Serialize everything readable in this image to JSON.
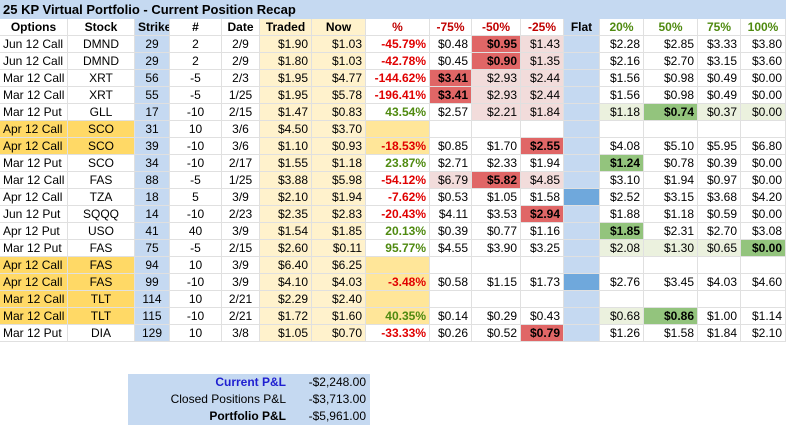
{
  "title": "25 KP Virtual Portfolio - Current Position Recap",
  "table": {
    "headers": [
      "Options",
      "Stock",
      "Strike",
      "#",
      "Date",
      "Traded",
      "Now",
      "%",
      "-75%",
      "-50%",
      "-25%",
      "Flat",
      "20%",
      "50%",
      "75%",
      "100%"
    ],
    "rows": [
      [
        "Jun 12 Call",
        "DMND",
        "29",
        "2",
        "2/9",
        "$1.90",
        "$1.03",
        "-45.79%",
        "$0.48",
        "$0.95",
        "$1.43",
        null,
        "$2.28",
        "$2.85",
        "$3.33",
        "$3.80"
      ],
      [
        "Jun 12 Call",
        "DMND",
        "29",
        "2",
        "2/9",
        "$1.80",
        "$1.03",
        "-42.78%",
        "$0.45",
        "$0.90",
        "$1.35",
        null,
        "$2.16",
        "$2.70",
        "$3.15",
        "$3.60"
      ],
      [
        "Mar 12 Call",
        "XRT",
        "56",
        "-5",
        "2/3",
        "$1.95",
        "$4.77",
        "-144.62%",
        "$3.41",
        "$2.93",
        "$2.44",
        null,
        "$1.56",
        "$0.98",
        "$0.49",
        "$0.00"
      ],
      [
        "Mar 12 Call",
        "XRT",
        "55",
        "-5",
        "1/25",
        "$1.95",
        "$5.78",
        "-196.41%",
        "$3.41",
        "$2.93",
        "$2.44",
        null,
        "$1.56",
        "$0.98",
        "$0.49",
        "$0.00"
      ],
      [
        "Mar 12 Put",
        "GLL",
        "17",
        "-10",
        "2/15",
        "$1.47",
        "$0.83",
        "43.54%",
        "$2.57",
        "$2.21",
        "$1.84",
        null,
        "$1.18",
        "$0.74",
        "$0.37",
        "$0.00"
      ],
      [
        "Apr 12 Call",
        "SCO",
        "31",
        "10",
        "3/6",
        "$4.50",
        "$3.70",
        null,
        null,
        null,
        null,
        null,
        null,
        null,
        null,
        null
      ],
      [
        "Apr 12 Call",
        "SCO",
        "39",
        "-10",
        "3/6",
        "$1.10",
        "$0.93",
        "-18.53%",
        "$0.85",
        "$1.70",
        "$2.55",
        null,
        "$4.08",
        "$5.10",
        "$5.95",
        "$6.80"
      ],
      [
        "Mar 12 Put",
        "SCO",
        "34",
        "-10",
        "2/17",
        "$1.55",
        "$1.18",
        "23.87%",
        "$2.71",
        "$2.33",
        "$1.94",
        null,
        "$1.24",
        "$0.78",
        "$0.39",
        "$0.00"
      ],
      [
        "Mar 12 Call",
        "FAS",
        "88",
        "-5",
        "1/25",
        "$3.88",
        "$5.98",
        "-54.12%",
        "$6.79",
        "$5.82",
        "$4.85",
        null,
        "$3.10",
        "$1.94",
        "$0.97",
        "$0.00"
      ],
      [
        "Apr 12 Call",
        "TZA",
        "18",
        "5",
        "3/9",
        "$2.10",
        "$1.94",
        "-7.62%",
        "$0.53",
        "$1.05",
        "$1.58",
        null,
        "$2.52",
        "$3.15",
        "$3.68",
        "$4.20"
      ],
      [
        "Jun 12 Put",
        "SQQQ",
        "14",
        "-10",
        "2/23",
        "$2.35",
        "$2.83",
        "-20.43%",
        "$4.11",
        "$3.53",
        "$2.94",
        null,
        "$1.88",
        "$1.18",
        "$0.59",
        "$0.00"
      ],
      [
        "Apr 12 Put",
        "USO",
        "41",
        "40",
        "3/9",
        "$1.54",
        "$1.85",
        "20.13%",
        "$0.39",
        "$0.77",
        "$1.16",
        null,
        "$1.85",
        "$2.31",
        "$2.70",
        "$3.08"
      ],
      [
        "Mar 12 Put",
        "FAS",
        "75",
        "-5",
        "2/15",
        "$2.60",
        "$0.11",
        "95.77%",
        "$4.55",
        "$3.90",
        "$3.25",
        null,
        "$2.08",
        "$1.30",
        "$0.65",
        "$0.00"
      ],
      [
        "Apr 12 Call",
        "FAS",
        "94",
        "10",
        "3/9",
        "$6.40",
        "$6.25",
        null,
        null,
        null,
        null,
        null,
        null,
        null,
        null,
        null
      ],
      [
        "Apr 12 Call",
        "FAS",
        "99",
        "-10",
        "3/9",
        "$4.10",
        "$4.03",
        "-3.48%",
        "$0.58",
        "$1.15",
        "$1.73",
        null,
        "$2.76",
        "$3.45",
        "$4.03",
        "$4.60"
      ],
      [
        "Mar 12 Call",
        "TLT",
        "114",
        "10",
        "2/21",
        "$2.29",
        "$2.40",
        null,
        null,
        null,
        null,
        null,
        null,
        null,
        null,
        null
      ],
      [
        "Mar 12 Call",
        "TLT",
        "115",
        "-10",
        "2/21",
        "$1.72",
        "$1.60",
        "40.35%",
        "$0.14",
        "$0.29",
        "$0.43",
        null,
        "$0.68",
        "$0.86",
        "$1.00",
        "$1.14"
      ],
      [
        "Mar 12 Put",
        "DIA",
        "129",
        "10",
        "3/8",
        "$1.05",
        "$0.70",
        "-33.33%",
        "$0.26",
        "$0.52",
        "$0.79",
        null,
        "$1.26",
        "$1.58",
        "$1.84",
        "$2.10"
      ]
    ]
  },
  "summary": [
    {
      "label": "Current P&L",
      "value": "-$2,248.00"
    },
    {
      "label": "Closed Positions P&L",
      "value": "-$3,713.00"
    },
    {
      "label": "Portfolio P&L",
      "value": "-$5,961.00"
    }
  ]
}
